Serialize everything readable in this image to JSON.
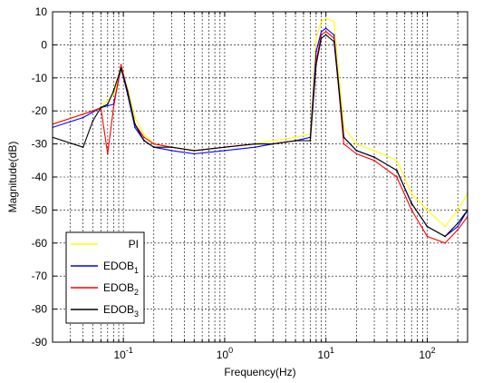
{
  "chart_data": {
    "type": "line",
    "title": "",
    "xlabel": "Frequency(Hz)",
    "ylabel": "Magnitude(dB)",
    "xscale": "log",
    "xlim": [
      0.02,
      250
    ],
    "ylim": [
      -90,
      10
    ],
    "grid": true,
    "legend_position": "bottom-left",
    "x_ticks": [
      {
        "value": 0.1,
        "base": "10",
        "exp": "-1"
      },
      {
        "value": 1,
        "base": "10",
        "exp": "0"
      },
      {
        "value": 10,
        "base": "10",
        "exp": "1"
      },
      {
        "value": 100,
        "base": "10",
        "exp": "2"
      }
    ],
    "y_ticks": [
      10,
      0,
      -10,
      -20,
      -30,
      -40,
      -50,
      -60,
      -70,
      -80,
      -90
    ],
    "series": [
      {
        "name": "PI",
        "name_sub": "",
        "color": "#ffff00",
        "x": [
          0.02,
          0.04,
          0.06,
          0.08,
          0.095,
          0.11,
          0.13,
          0.16,
          0.2,
          0.3,
          0.5,
          1,
          2,
          3,
          5,
          7,
          8,
          9,
          10,
          12,
          15,
          20,
          30,
          50,
          70,
          100,
          150,
          200,
          250
        ],
        "y": [
          -24,
          -21,
          -19,
          -15,
          -8,
          -13,
          -22,
          -27,
          -30,
          -31,
          -32,
          -31,
          -30,
          -29,
          -28,
          -27,
          2,
          7,
          8,
          7,
          -25,
          -30,
          -32,
          -35,
          -45,
          -50,
          -55,
          -50,
          -45
        ]
      },
      {
        "name": "EDOB",
        "name_sub": "1",
        "color": "#0000ff",
        "x": [
          0.02,
          0.04,
          0.06,
          0.08,
          0.095,
          0.11,
          0.13,
          0.16,
          0.2,
          0.3,
          0.5,
          1,
          2,
          3,
          5,
          7,
          8,
          9,
          10,
          12,
          15,
          20,
          30,
          50,
          70,
          100,
          150,
          200,
          250
        ],
        "y": [
          -25,
          -22,
          -19,
          -18,
          -7,
          -15,
          -25,
          -29,
          -31,
          -32,
          -33,
          -32,
          -31,
          -30,
          -29,
          -28,
          -2,
          4,
          5,
          3,
          -28,
          -32,
          -34,
          -38,
          -48,
          -55,
          -58,
          -55,
          -50
        ]
      },
      {
        "name": "EDOB",
        "name_sub": "2",
        "color": "#ff0000",
        "x": [
          0.02,
          0.04,
          0.05,
          0.06,
          0.07,
          0.08,
          0.095,
          0.11,
          0.13,
          0.16,
          0.2,
          0.3,
          0.5,
          1,
          2,
          3,
          5,
          7,
          8,
          9,
          10,
          12,
          15,
          20,
          30,
          50,
          70,
          100,
          150,
          200,
          250
        ],
        "y": [
          -24,
          -21,
          -20,
          -19,
          -33,
          -19,
          -6,
          -14,
          -24,
          -28,
          -30,
          -31,
          -32,
          -31,
          -30,
          -30,
          -29,
          -29,
          -5,
          3,
          4,
          2,
          -30,
          -33,
          -35,
          -40,
          -50,
          -58,
          -60,
          -56,
          -52
        ]
      },
      {
        "name": "EDOB",
        "name_sub": "3",
        "color": "#000000",
        "x": [
          0.02,
          0.04,
          0.05,
          0.06,
          0.07,
          0.08,
          0.095,
          0.11,
          0.13,
          0.16,
          0.2,
          0.3,
          0.5,
          1,
          2,
          3,
          5,
          7,
          8,
          9,
          10,
          12,
          15,
          20,
          30,
          50,
          70,
          100,
          150,
          200,
          250
        ],
        "y": [
          -28,
          -31,
          -23,
          -19,
          -18,
          -14,
          -7,
          -14,
          -24,
          -29,
          -31,
          -31,
          -32,
          -31,
          -30,
          -30,
          -29,
          -29,
          -6,
          2,
          3,
          1,
          -28,
          -32,
          -34,
          -38,
          -48,
          -55,
          -58,
          -54,
          -50
        ]
      }
    ]
  }
}
